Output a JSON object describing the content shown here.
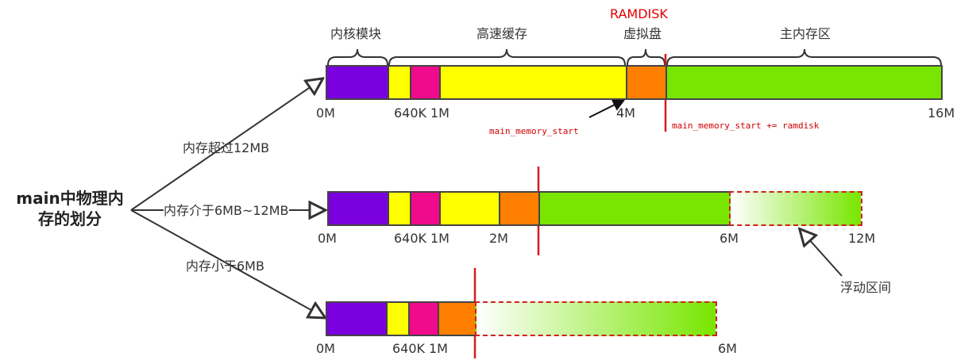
{
  "colors": {
    "kernel": "#7b00e0",
    "cache": "#ffff00",
    "reserved_640k_1m": "#f00a8c",
    "ramdisk": "#ff7f00",
    "main_memory": "#78e600",
    "marker": "#d81b1b"
  },
  "title": "main中物理内存的划分",
  "branches": {
    "over_12mb": "内存超过12MB",
    "between_6_12mb": "内存介于6MB~12MB",
    "under_6mb": "内存小于6MB"
  },
  "top_bar": {
    "regions": {
      "kernel": "内核模块",
      "cache": "高速缓存",
      "ramdisk_title": "RAMDISK",
      "ramdisk": "虚拟盘",
      "main_memory": "主内存区"
    },
    "ticks": [
      "0M",
      "640K",
      "1M",
      "4M",
      "16M"
    ],
    "annotation_start": "main_memory_start",
    "annotation_ramdisk": "main_memory_start += ramdisk"
  },
  "middle_bar": {
    "ticks": [
      "0M",
      "640K",
      "1M",
      "2M",
      "6M",
      "12M"
    ],
    "float_label": "浮动区间"
  },
  "bottom_bar": {
    "ticks": [
      "0M",
      "640K",
      "1M",
      "6M"
    ]
  }
}
